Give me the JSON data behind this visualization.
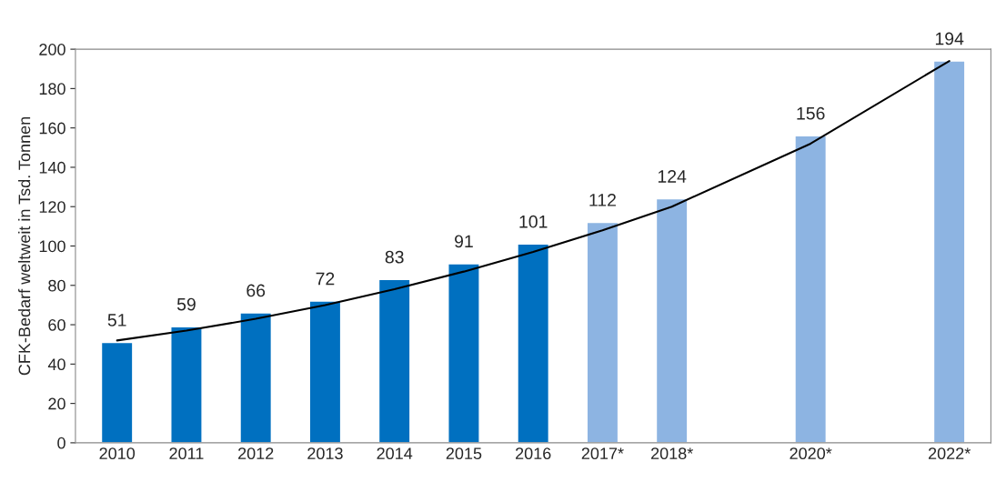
{
  "chart_data": {
    "type": "bar",
    "ylabel": "CFK-Bedarf weltweit in Tsd. Tonnen",
    "categories": [
      "2010",
      "2011",
      "2012",
      "2013",
      "2014",
      "2015",
      "2016",
      "2017*",
      "2018*",
      null,
      "2020*",
      null,
      "2022*"
    ],
    "series": [
      {
        "colors": [
          "#0070c0",
          "#0070c0",
          "#0070c0",
          "#0070c0",
          "#0070c0",
          "#0070c0",
          "#0070c0",
          "#8db4e2",
          "#8db4e2",
          "#8db4e2",
          "#8db4e2",
          "#8db4e2",
          "#8db4e2"
        ],
        "values": [
          51,
          59,
          66,
          72,
          83,
          91,
          101,
          112,
          124,
          null,
          156,
          null,
          194
        ],
        "value_labels": [
          "51",
          "59",
          "66",
          "72",
          "83",
          "91",
          "101",
          "112",
          "124",
          null,
          "156",
          null,
          "194"
        ]
      },
      {
        "type": "line",
        "color": "#000000",
        "values": [
          52,
          57,
          63,
          70,
          78,
          87,
          97,
          108,
          120,
          null,
          152,
          null,
          194
        ]
      }
    ],
    "ylim": [
      0,
      200
    ],
    "yticks": [
      0,
      20,
      40,
      60,
      80,
      100,
      120,
      140,
      160,
      180,
      200
    ],
    "grid": false,
    "legend": false
  }
}
